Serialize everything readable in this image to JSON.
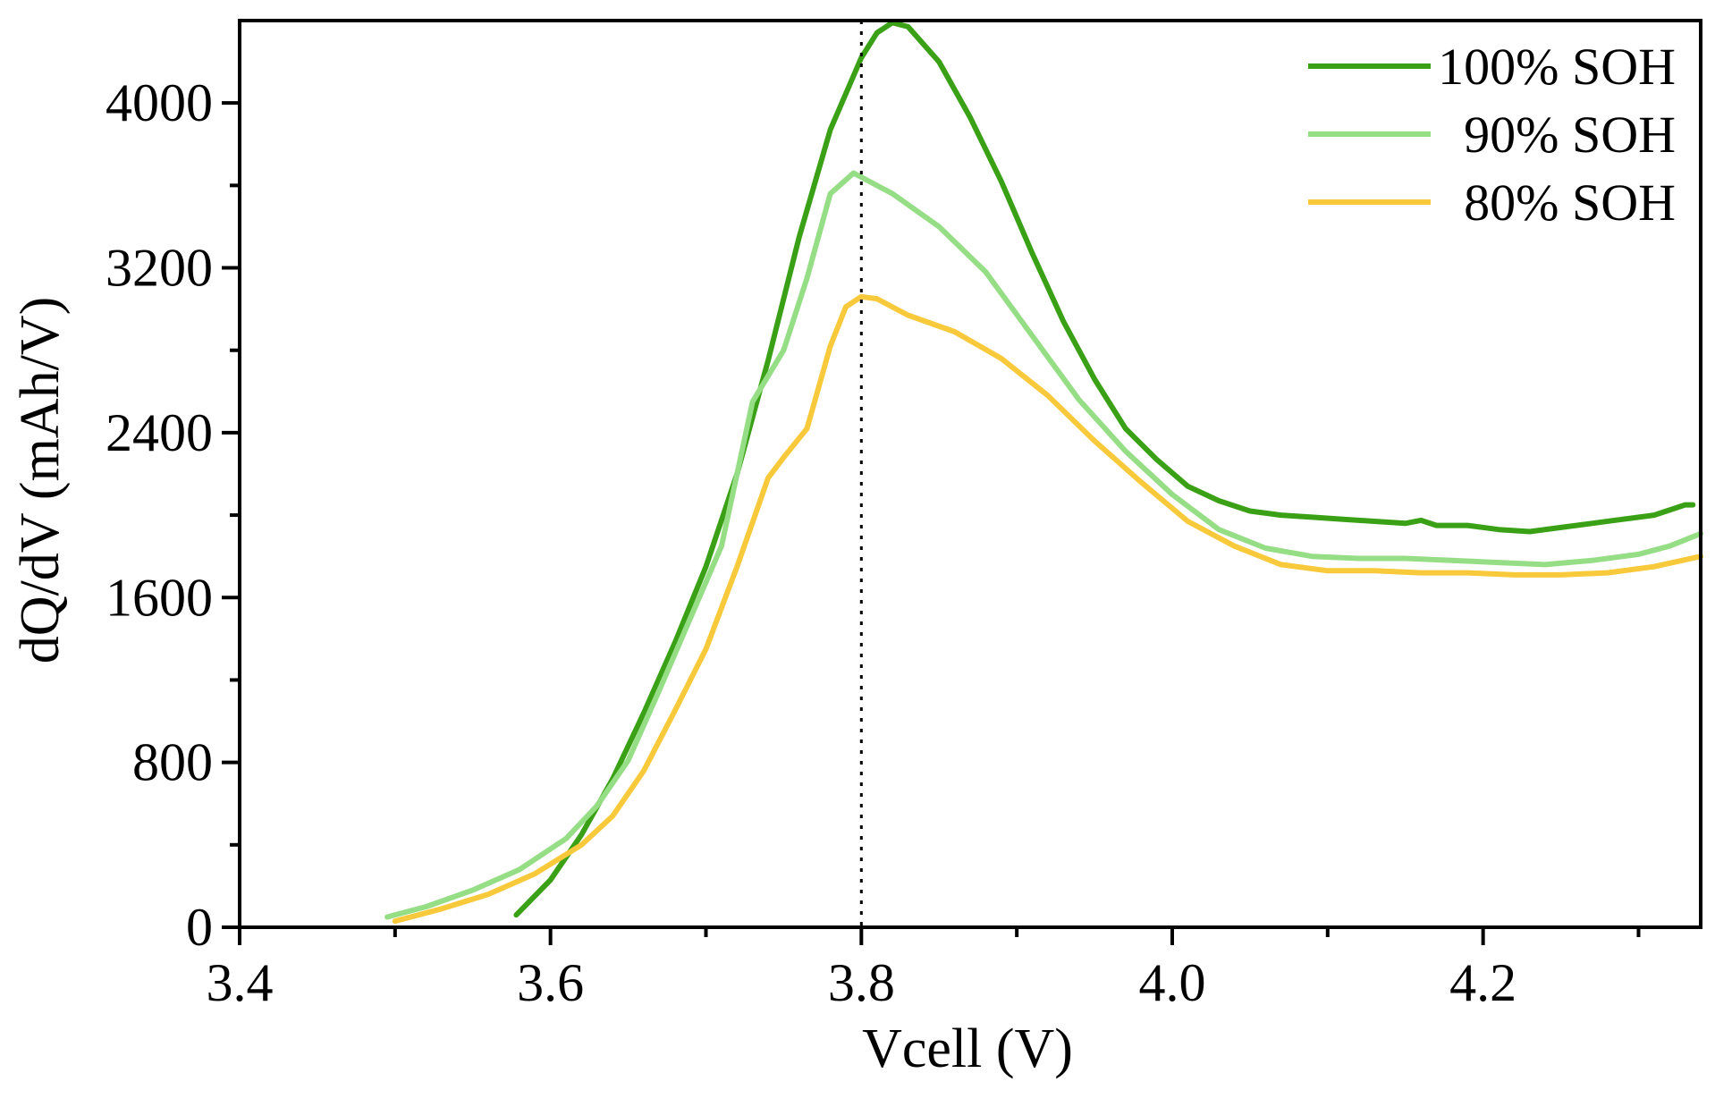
{
  "chart_data": {
    "type": "line",
    "title": "",
    "xlabel": "Vcell (V)",
    "ylabel": "dQ/dV (mAh/V)",
    "xlim": [
      3.4,
      4.34
    ],
    "ylim": [
      0,
      4400
    ],
    "x_ticks": [
      3.4,
      3.6,
      3.8,
      4.0,
      4.2
    ],
    "x_tick_labels": [
      "3.4",
      "3.6",
      "3.8",
      "4.0",
      "4.2"
    ],
    "y_ticks": [
      0,
      800,
      1600,
      2400,
      3200,
      4000
    ],
    "y_tick_labels": [
      "0",
      "800",
      "1600",
      "2400",
      "3200",
      "4000"
    ],
    "x_minor_ticks": [
      3.5,
      3.7,
      3.9,
      4.1,
      4.3
    ],
    "y_minor_ticks": [
      400,
      1200,
      2000,
      2800,
      3600
    ],
    "grid": false,
    "legend_position": "top-right",
    "reference_line": {
      "x": 3.8,
      "style": "dotted",
      "color": "#000000"
    },
    "series": [
      {
        "name": "100% SOH",
        "color": "#3aa117",
        "x": [
          3.578,
          3.6,
          3.62,
          3.64,
          3.66,
          3.68,
          3.7,
          3.72,
          3.74,
          3.76,
          3.78,
          3.8,
          3.81,
          3.82,
          3.83,
          3.85,
          3.87,
          3.89,
          3.91,
          3.93,
          3.95,
          3.97,
          3.99,
          4.01,
          4.03,
          4.05,
          4.07,
          4.09,
          4.11,
          4.13,
          4.15,
          4.16,
          4.17,
          4.19,
          4.21,
          4.23,
          4.25,
          4.27,
          4.29,
          4.31,
          4.33,
          4.335
        ],
        "y": [
          60,
          230,
          450,
          720,
          1040,
          1380,
          1750,
          2200,
          2750,
          3350,
          3870,
          4220,
          4340,
          4390,
          4370,
          4200,
          3930,
          3620,
          3270,
          2940,
          2660,
          2420,
          2270,
          2140,
          2070,
          2020,
          2000,
          1990,
          1980,
          1970,
          1960,
          1975,
          1950,
          1950,
          1930,
          1920,
          1940,
          1960,
          1980,
          2000,
          2050,
          2050
        ]
      },
      {
        "name": "90% SOH",
        "color": "#96de85",
        "x": [
          3.495,
          3.52,
          3.55,
          3.58,
          3.61,
          3.63,
          3.65,
          3.67,
          3.69,
          3.71,
          3.72,
          3.73,
          3.75,
          3.765,
          3.78,
          3.795,
          3.8,
          3.82,
          3.85,
          3.88,
          3.91,
          3.94,
          3.97,
          4.0,
          4.03,
          4.06,
          4.09,
          4.12,
          4.15,
          4.18,
          4.21,
          4.24,
          4.27,
          4.3,
          4.32,
          4.34
        ],
        "y": [
          50,
          100,
          180,
          280,
          430,
          590,
          810,
          1150,
          1500,
          1850,
          2200,
          2550,
          2800,
          3150,
          3560,
          3660,
          3640,
          3560,
          3400,
          3180,
          2870,
          2560,
          2310,
          2100,
          1930,
          1840,
          1800,
          1790,
          1790,
          1780,
          1770,
          1760,
          1780,
          1810,
          1850,
          1910
        ]
      },
      {
        "name": "80% SOH",
        "color": "#f8c93a",
        "x": [
          3.5,
          3.53,
          3.56,
          3.59,
          3.62,
          3.64,
          3.66,
          3.68,
          3.7,
          3.72,
          3.74,
          3.75,
          3.765,
          3.78,
          3.79,
          3.8,
          3.81,
          3.83,
          3.86,
          3.89,
          3.92,
          3.95,
          3.98,
          4.01,
          4.04,
          4.07,
          4.1,
          4.13,
          4.16,
          4.19,
          4.22,
          4.25,
          4.28,
          4.31,
          4.34
        ],
        "y": [
          30,
          90,
          160,
          260,
          400,
          540,
          760,
          1050,
          1350,
          1750,
          2180,
          2280,
          2420,
          2820,
          3010,
          3060,
          3050,
          2970,
          2890,
          2760,
          2580,
          2360,
          2160,
          1970,
          1850,
          1760,
          1730,
          1730,
          1720,
          1720,
          1710,
          1710,
          1720,
          1750,
          1800
        ]
      }
    ]
  }
}
